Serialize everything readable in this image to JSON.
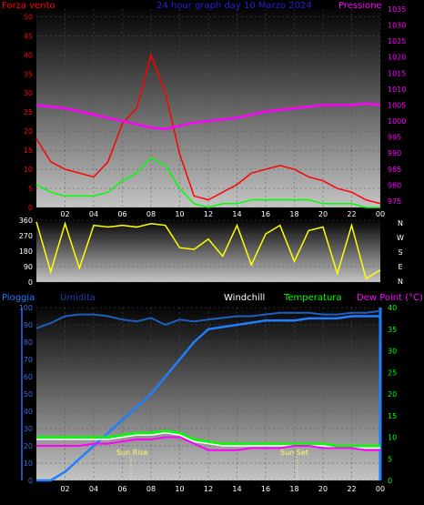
{
  "page": {
    "title": "24 hour graph day  10 Marzo 2024",
    "colors": {
      "background": "#000000",
      "wind": "#ff0000",
      "gust_low": "#00ff00",
      "pressure": "#ff00ff",
      "direction": "#ffff00",
      "humidity": "#1e90ff",
      "temperature": "#00ff00",
      "dewpoint": "#ff00ff",
      "windchill": "#ffffff",
      "rain": "#1e7fff",
      "sun": "#ffff66"
    }
  },
  "chart_data": [
    {
      "type": "line",
      "panel": "wind_pressure",
      "title": "24 hour graph day  10 Marzo 2024",
      "left_label": "Forza vento",
      "right_label": "Pressione",
      "x_ticks": [
        "02",
        "04",
        "06",
        "08",
        "10",
        "12",
        "14",
        "16",
        "18",
        "20",
        "22",
        "00"
      ],
      "y_left_ticks": [
        "0",
        "5",
        "10",
        "15",
        "20",
        "25",
        "30",
        "35",
        "40",
        "45",
        "50"
      ],
      "y_left_lim": [
        0,
        52
      ],
      "y_right_ticks": [
        "975",
        "980",
        "985",
        "990",
        "995",
        "1000",
        "1005",
        "1010",
        "1015",
        "1020",
        "1025",
        "1030",
        "1035"
      ],
      "y_right_lim": [
        973,
        1035
      ],
      "x": [
        0,
        1,
        2,
        3,
        4,
        5,
        6,
        7,
        8,
        9,
        10,
        11,
        12,
        13,
        14,
        15,
        16,
        17,
        18,
        19,
        20,
        21,
        22,
        23,
        24
      ],
      "series": [
        {
          "name": "Forza vento",
          "color": "#ff0000",
          "values": [
            18,
            12,
            10,
            9,
            8,
            12,
            22,
            26,
            40,
            30,
            14,
            3,
            2,
            4,
            6,
            9,
            10,
            11,
            10,
            8,
            7,
            5,
            4,
            2,
            1
          ]
        },
        {
          "name": "",
          "color": "#00ff00",
          "values": [
            6,
            4,
            3,
            3,
            3,
            4,
            7,
            9,
            13,
            11,
            5,
            1,
            0,
            1,
            1,
            2,
            2,
            2,
            2,
            2,
            1,
            1,
            1,
            0,
            0
          ]
        },
        {
          "name": "Pressione",
          "color": "#ff00ff",
          "values": [
            1005,
            1004.5,
            1004,
            1003,
            1002,
            1001,
            1000,
            999,
            998,
            997.5,
            998.5,
            999.5,
            1000,
            1000.5,
            1001,
            1002,
            1003,
            1003.5,
            1004,
            1004.5,
            1005,
            1005,
            1005,
            1005.5,
            1005
          ]
        }
      ]
    },
    {
      "type": "line",
      "panel": "wind_direction",
      "y_left_ticks": [
        "0",
        "90",
        "180",
        "270",
        "360"
      ],
      "y_left_lim": [
        0,
        360
      ],
      "y_right_ticks": [
        "N",
        "W",
        "S",
        "E",
        "N"
      ],
      "x": [
        0,
        1,
        2,
        3,
        4,
        5,
        6,
        7,
        8,
        9,
        10,
        11,
        12,
        13,
        14,
        15,
        16,
        17,
        18,
        19,
        20,
        21,
        22,
        23,
        24
      ],
      "series": [
        {
          "name": "",
          "color": "#ffff00",
          "values": [
            350,
            60,
            340,
            80,
            330,
            320,
            330,
            320,
            340,
            330,
            200,
            190,
            250,
            150,
            330,
            100,
            280,
            330,
            120,
            300,
            320,
            50,
            330,
            20,
            70
          ]
        }
      ]
    },
    {
      "type": "line",
      "panel": "temp_humidity_rain",
      "labels": {
        "rain": "Pioggia",
        "humidity": "Umidita",
        "windchill": "Windchill",
        "temperature": "Temperatura",
        "dewpoint": "Dew Point (°C)"
      },
      "x_ticks": [
        "02",
        "04",
        "06",
        "08",
        "10",
        "12",
        "14",
        "16",
        "18",
        "20",
        "22",
        "00"
      ],
      "y_left_ticks": [
        "0",
        "10",
        "20",
        "30",
        "40",
        "50",
        "60",
        "70",
        "80",
        "90",
        "100"
      ],
      "y_left_lim": [
        0,
        100
      ],
      "y_right_ticks": [
        "0",
        "5",
        "10",
        "15",
        "20",
        "25",
        "30",
        "35",
        "40"
      ],
      "y_right_lim": [
        0,
        40
      ],
      "sun_rise": {
        "label": "Sun Rise",
        "hour": 6.6
      },
      "sun_set": {
        "label": "Sun Set",
        "hour": 18.2
      },
      "x": [
        0,
        1,
        2,
        3,
        4,
        5,
        6,
        7,
        8,
        9,
        10,
        11,
        12,
        13,
        14,
        15,
        16,
        17,
        18,
        19,
        20,
        21,
        22,
        23,
        24
      ],
      "series": [
        {
          "name": "Umidita",
          "axis": "left",
          "color": "#1e5fbf",
          "values": [
            88,
            91,
            95,
            96,
            96,
            95,
            93,
            92,
            94,
            90,
            93,
            92,
            93,
            94,
            95,
            95,
            96,
            97,
            97,
            97,
            96,
            96,
            97,
            97,
            98
          ]
        },
        {
          "name": "Pioggia",
          "axis": "right",
          "color": "#1e7fff",
          "values": [
            0,
            0,
            2,
            5,
            8,
            11,
            14,
            17,
            20,
            24,
            28,
            32,
            35,
            35.5,
            36,
            36.5,
            37,
            37,
            37,
            37.5,
            37.5,
            37.5,
            38,
            38,
            38
          ]
        },
        {
          "name": "Temperatura",
          "axis": "right",
          "color": "#00ff00",
          "values": [
            10,
            10,
            10,
            10,
            10,
            10,
            10.5,
            11,
            11,
            11.5,
            11,
            9.5,
            9,
            8.5,
            8.5,
            8.5,
            8.5,
            8.5,
            8.5,
            8.5,
            8.5,
            8,
            8,
            8,
            8
          ]
        },
        {
          "name": "Windchill",
          "axis": "right",
          "color": "#ffffff",
          "values": [
            9.5,
            9.5,
            9.5,
            9.5,
            9.5,
            9.5,
            10,
            10.5,
            10.5,
            11,
            10.5,
            9,
            8.5,
            8,
            8,
            8,
            8,
            8,
            8,
            8,
            8,
            7.5,
            7.5,
            7.5,
            7.5
          ]
        },
        {
          "name": "Dew Point (°C)",
          "axis": "right",
          "color": "#ff00ff",
          "values": [
            8,
            8,
            8,
            8,
            8.5,
            8.5,
            9,
            9.5,
            9.5,
            10,
            10,
            8.5,
            7,
            7,
            7,
            7.5,
            7.5,
            7.5,
            8,
            8,
            7.5,
            7.5,
            7.5,
            7,
            7
          ]
        }
      ]
    }
  ]
}
